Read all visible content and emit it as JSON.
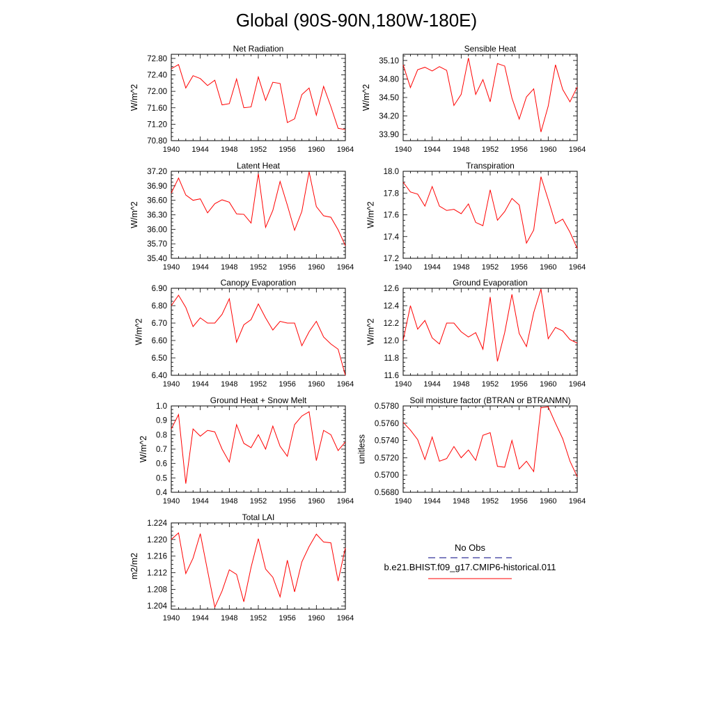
{
  "title": "Global (90S-90N,180W-180E)",
  "colors": {
    "model_line": "#ff0000",
    "obs_line": "#000080",
    "axis": "#000000"
  },
  "legend": {
    "obs_label": "No Obs",
    "model_label": "b.e21.BHIST.f09_g17.CMIP6-historical.011"
  },
  "chart_data": [
    {
      "type": "line",
      "title": "Net Radiation",
      "ylabel": "W/m^2",
      "xlim": [
        1940,
        1964
      ],
      "ylim": [
        70.8,
        72.9
      ],
      "xticks": [
        "1940",
        "1944",
        "1948",
        "1952",
        "1956",
        "1960",
        "1964"
      ],
      "yticks": [
        "70.80",
        "71.20",
        "71.60",
        "72.00",
        "72.40",
        "72.80"
      ],
      "x": [
        1940,
        1941,
        1942,
        1943,
        1944,
        1945,
        1946,
        1947,
        1948,
        1949,
        1950,
        1951,
        1952,
        1953,
        1954,
        1955,
        1956,
        1957,
        1958,
        1959,
        1960,
        1961,
        1962,
        1963,
        1964
      ],
      "series": [
        {
          "values": [
            72.55,
            72.65,
            72.08,
            72.38,
            72.31,
            72.14,
            72.27,
            71.67,
            71.7,
            72.3,
            71.6,
            71.62,
            72.35,
            71.78,
            72.22,
            72.19,
            71.24,
            71.33,
            71.92,
            72.08,
            71.42,
            72.12,
            71.63,
            71.1,
            71.07
          ]
        }
      ]
    },
    {
      "type": "line",
      "title": "Sensible Heat",
      "ylabel": "W/m^2",
      "xlim": [
        1940,
        1964
      ],
      "ylim": [
        33.8,
        35.2
      ],
      "xticks": [
        "1940",
        "1944",
        "1948",
        "1952",
        "1956",
        "1960",
        "1964"
      ],
      "yticks": [
        "33.90",
        "34.20",
        "34.50",
        "34.80",
        "35.10"
      ],
      "x": [
        1940,
        1941,
        1942,
        1943,
        1944,
        1945,
        1946,
        1947,
        1948,
        1949,
        1950,
        1951,
        1952,
        1953,
        1954,
        1955,
        1956,
        1957,
        1958,
        1959,
        1960,
        1961,
        1962,
        1963,
        1964
      ],
      "series": [
        {
          "values": [
            35.03,
            34.66,
            34.95,
            34.99,
            34.93,
            35.0,
            34.94,
            34.37,
            34.55,
            35.14,
            34.55,
            34.79,
            34.43,
            35.05,
            35.01,
            34.49,
            34.15,
            34.51,
            34.64,
            33.94,
            34.36,
            35.03,
            34.63,
            34.43,
            34.67
          ]
        }
      ]
    },
    {
      "type": "line",
      "title": "Latent Heat",
      "ylabel": "W/m^2",
      "xlim": [
        1940,
        1964
      ],
      "ylim": [
        35.4,
        37.2
      ],
      "xticks": [
        "1940",
        "1944",
        "1948",
        "1952",
        "1956",
        "1960",
        "1964"
      ],
      "yticks": [
        "35.40",
        "35.70",
        "36.00",
        "36.30",
        "36.60",
        "36.90",
        "37.20"
      ],
      "x": [
        1940,
        1941,
        1942,
        1943,
        1944,
        1945,
        1946,
        1947,
        1948,
        1949,
        1950,
        1951,
        1952,
        1953,
        1954,
        1955,
        1956,
        1957,
        1958,
        1959,
        1960,
        1961,
        1962,
        1963,
        1964
      ],
      "series": [
        {
          "values": [
            36.75,
            37.06,
            36.71,
            36.6,
            36.63,
            36.34,
            36.53,
            36.61,
            36.56,
            36.32,
            36.31,
            36.13,
            37.15,
            36.04,
            36.39,
            36.99,
            36.5,
            35.98,
            36.37,
            37.19,
            36.47,
            36.28,
            36.25,
            35.99,
            35.66
          ]
        }
      ]
    },
    {
      "type": "line",
      "title": "Transpiration",
      "ylabel": "W/m^2",
      "xlim": [
        1940,
        1964
      ],
      "ylim": [
        17.2,
        18.0
      ],
      "xticks": [
        "1940",
        "1944",
        "1948",
        "1952",
        "1956",
        "1960",
        "1964"
      ],
      "yticks": [
        "17.2",
        "17.4",
        "17.6",
        "17.8",
        "18.0"
      ],
      "x": [
        1940,
        1941,
        1942,
        1943,
        1944,
        1945,
        1946,
        1947,
        1948,
        1949,
        1950,
        1951,
        1952,
        1953,
        1954,
        1955,
        1956,
        1957,
        1958,
        1959,
        1960,
        1961,
        1962,
        1963,
        1964
      ],
      "series": [
        {
          "values": [
            17.9,
            17.81,
            17.79,
            17.68,
            17.86,
            17.68,
            17.64,
            17.65,
            17.61,
            17.7,
            17.53,
            17.5,
            17.83,
            17.55,
            17.63,
            17.75,
            17.69,
            17.34,
            17.46,
            17.95,
            17.74,
            17.52,
            17.56,
            17.44,
            17.29
          ]
        }
      ]
    },
    {
      "type": "line",
      "title": "Canopy Evaporation",
      "ylabel": "W/m^2",
      "xlim": [
        1940,
        1964
      ],
      "ylim": [
        6.4,
        6.9
      ],
      "xticks": [
        "1940",
        "1944",
        "1948",
        "1952",
        "1956",
        "1960",
        "1964"
      ],
      "yticks": [
        "6.40",
        "6.50",
        "6.60",
        "6.70",
        "6.80",
        "6.90"
      ],
      "x": [
        1940,
        1941,
        1942,
        1943,
        1944,
        1945,
        1946,
        1947,
        1948,
        1949,
        1950,
        1951,
        1952,
        1953,
        1954,
        1955,
        1956,
        1957,
        1958,
        1959,
        1960,
        1961,
        1962,
        1963,
        1964
      ],
      "series": [
        {
          "values": [
            6.8,
            6.86,
            6.79,
            6.68,
            6.73,
            6.7,
            6.7,
            6.75,
            6.84,
            6.59,
            6.69,
            6.72,
            6.81,
            6.73,
            6.66,
            6.71,
            6.7,
            6.7,
            6.57,
            6.65,
            6.71,
            6.62,
            6.58,
            6.55,
            6.4
          ]
        }
      ]
    },
    {
      "type": "line",
      "title": "Ground Evaporation",
      "ylabel": "W/m^2",
      "xlim": [
        1940,
        1964
      ],
      "ylim": [
        11.6,
        12.6
      ],
      "xticks": [
        "1940",
        "1944",
        "1948",
        "1952",
        "1956",
        "1960",
        "1964"
      ],
      "yticks": [
        "11.6",
        "11.8",
        "12.0",
        "12.2",
        "12.4",
        "12.6"
      ],
      "x": [
        1940,
        1941,
        1942,
        1943,
        1944,
        1945,
        1946,
        1947,
        1948,
        1949,
        1950,
        1951,
        1952,
        1953,
        1954,
        1955,
        1956,
        1957,
        1958,
        1959,
        1960,
        1961,
        1962,
        1963,
        1964
      ],
      "series": [
        {
          "values": [
            12.0,
            12.4,
            12.13,
            12.23,
            12.03,
            11.96,
            12.2,
            12.2,
            12.1,
            12.04,
            12.09,
            11.9,
            12.5,
            11.76,
            12.09,
            12.53,
            12.08,
            11.93,
            12.32,
            12.59,
            12.02,
            12.15,
            12.11,
            12.01,
            11.97
          ]
        }
      ]
    },
    {
      "type": "line",
      "title": "Ground Heat + Snow Melt",
      "ylabel": "W/m^2",
      "xlim": [
        1940,
        1964
      ],
      "ylim": [
        0.4,
        1.0
      ],
      "xticks": [
        "1940",
        "1944",
        "1948",
        "1952",
        "1956",
        "1960",
        "1964"
      ],
      "yticks": [
        "0.4",
        "0.5",
        "0.6",
        "0.7",
        "0.8",
        "0.9",
        "1.0"
      ],
      "x": [
        1940,
        1941,
        1942,
        1943,
        1944,
        1945,
        1946,
        1947,
        1948,
        1949,
        1950,
        1951,
        1952,
        1953,
        1954,
        1955,
        1956,
        1957,
        1958,
        1959,
        1960,
        1961,
        1962,
        1963,
        1964
      ],
      "series": [
        {
          "values": [
            0.84,
            0.94,
            0.46,
            0.84,
            0.79,
            0.83,
            0.82,
            0.7,
            0.61,
            0.87,
            0.74,
            0.71,
            0.8,
            0.7,
            0.86,
            0.72,
            0.65,
            0.87,
            0.93,
            0.96,
            0.62,
            0.83,
            0.8,
            0.69,
            0.75
          ]
        }
      ]
    },
    {
      "type": "line",
      "title": "Soil moisture factor (BTRAN or BTRANMN)",
      "ylabel": "unitless",
      "xlim": [
        1940,
        1964
      ],
      "ylim": [
        0.568,
        0.578
      ],
      "xticks": [
        "1940",
        "1944",
        "1948",
        "1952",
        "1956",
        "1960",
        "1964"
      ],
      "yticks": [
        "0.5680",
        "0.5700",
        "0.5720",
        "0.5740",
        "0.5760",
        "0.5780"
      ],
      "x": [
        1940,
        1941,
        1942,
        1943,
        1944,
        1945,
        1946,
        1947,
        1948,
        1949,
        1950,
        1951,
        1952,
        1953,
        1954,
        1955,
        1956,
        1957,
        1958,
        1959,
        1960,
        1961,
        1962,
        1963,
        1964
      ],
      "series": [
        {
          "values": [
            0.5761,
            0.5752,
            0.5741,
            0.5718,
            0.5744,
            0.5716,
            0.5719,
            0.5733,
            0.572,
            0.5729,
            0.5717,
            0.5746,
            0.5749,
            0.571,
            0.5709,
            0.574,
            0.5707,
            0.5716,
            0.5704,
            0.5778,
            0.5779,
            0.576,
            0.5742,
            0.5716,
            0.5698
          ]
        }
      ]
    },
    {
      "type": "line",
      "title": "Total LAI",
      "ylabel": "m2/m2",
      "xlim": [
        1940,
        1964
      ],
      "ylim": [
        1.2032,
        1.224
      ],
      "xticks": [
        "1940",
        "1944",
        "1948",
        "1952",
        "1956",
        "1960",
        "1964"
      ],
      "yticks": [
        "1.204",
        "1.208",
        "1.212",
        "1.216",
        "1.220",
        "1.224"
      ],
      "x": [
        1940,
        1941,
        1942,
        1943,
        1944,
        1945,
        1946,
        1947,
        1948,
        1949,
        1950,
        1951,
        1952,
        1953,
        1954,
        1955,
        1956,
        1957,
        1958,
        1959,
        1960,
        1961,
        1962,
        1963,
        1964
      ],
      "series": [
        {
          "values": [
            1.22,
            1.2216,
            1.2118,
            1.2155,
            1.2214,
            1.2125,
            1.2037,
            1.2076,
            1.2127,
            1.2116,
            1.205,
            1.2133,
            1.2202,
            1.2129,
            1.2109,
            1.2062,
            1.215,
            1.2074,
            1.2146,
            1.2183,
            1.2213,
            1.2194,
            1.2192,
            1.21,
            1.218
          ]
        }
      ]
    }
  ]
}
